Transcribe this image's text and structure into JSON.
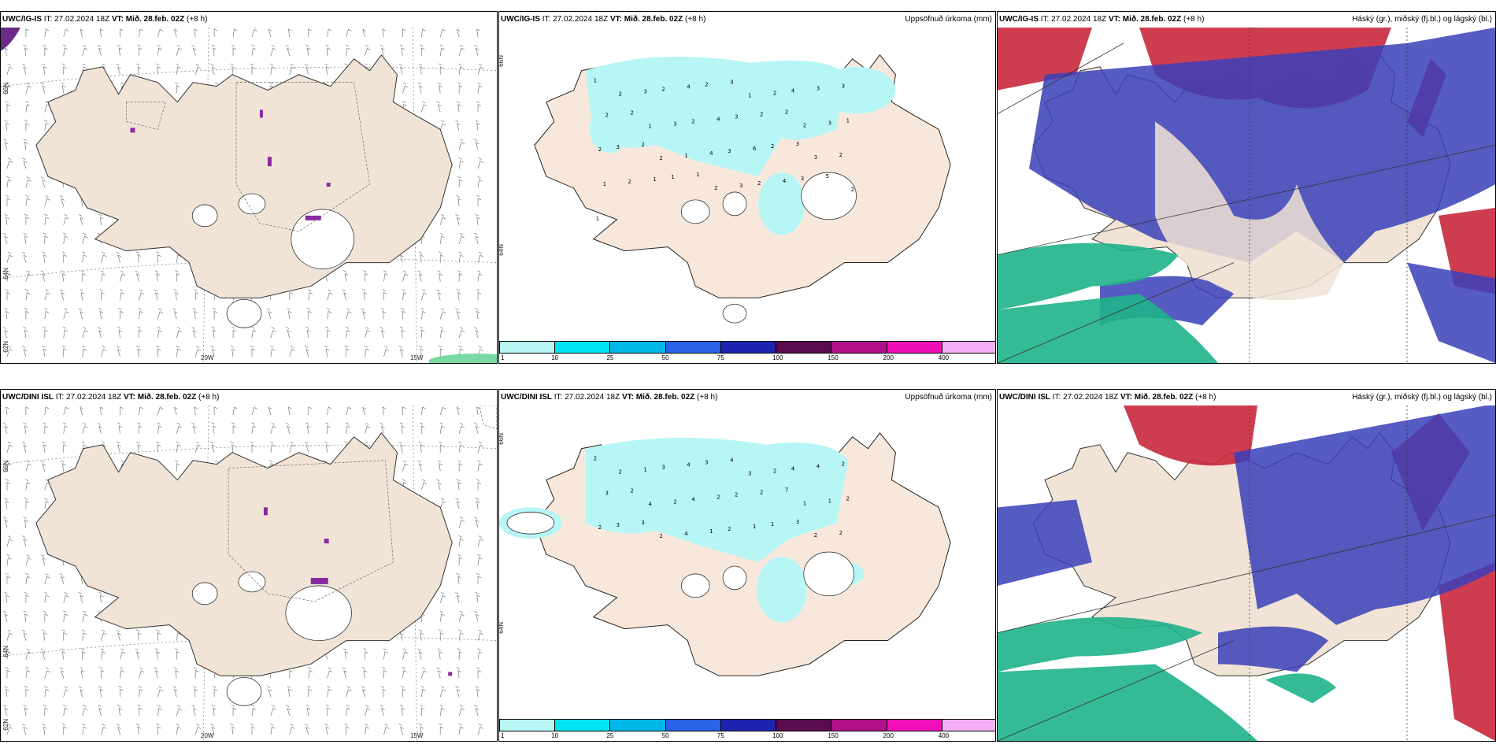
{
  "rows": [
    {
      "model": "UWC/IG-IS",
      "it_text": "IT: 27.02.2024 18Z",
      "vt_label": "VT:",
      "vt_value": "Mið. 28.feb. 02Z",
      "lead": "(+8 h)"
    },
    {
      "model": "UWC/DINI ISL",
      "it_text": "IT: 27.02.2024 18Z",
      "vt_label": "VT:",
      "vt_value": "Mið. 28.feb. 02Z",
      "lead": "(+8 h)"
    }
  ],
  "precip_title": "Uppsöfnuð úrkoma (mm)",
  "cloud_title": "Háský (gr.), miðský (fj.bl.) og lágský (bl.)",
  "grid_labels": {
    "lat_66": "66N",
    "lat_64": "64N",
    "lat_62": "62N",
    "lon_20": "20W",
    "lon_15": "15W"
  },
  "colorbar": {
    "ticks": [
      "1",
      "10",
      "25",
      "50",
      "75",
      "100",
      "150",
      "200",
      "400"
    ],
    "colors": [
      "#b8f6f6",
      "#00e5f0",
      "#00b8e8",
      "#2a62e8",
      "#1d24b0",
      "#5a0a4e",
      "#b0108a",
      "#f010b8",
      "#f4b0f4"
    ]
  },
  "precip_numbers_top": [
    "1",
    "2",
    "3",
    "2",
    "4",
    "2",
    "3",
    "1",
    "2",
    "4",
    "3",
    "3",
    "2",
    "2",
    "1",
    "3",
    "2",
    "4",
    "3",
    "2",
    "2",
    "2",
    "3",
    "1",
    "2",
    "3",
    "2",
    "2",
    "1",
    "4",
    "3",
    "6",
    "2",
    "3",
    "3",
    "2",
    "1",
    "2",
    "1",
    "1",
    "1",
    "2",
    "3",
    "2",
    "4",
    "3",
    "5",
    "2",
    "1"
  ],
  "precip_numbers_bottom": [
    "2",
    "2",
    "1",
    "3",
    "4",
    "3",
    "4",
    "3",
    "2",
    "4",
    "4",
    "2",
    "3",
    "2",
    "4",
    "2",
    "4",
    "2",
    "2",
    "2",
    "7",
    "1",
    "1",
    "2",
    "2",
    "3",
    "3",
    "2",
    "4",
    "1",
    "2",
    "1",
    "1",
    "3",
    "2",
    "2"
  ],
  "colors": {
    "land": "#f8e8dc",
    "land_left": "#f1e3d6",
    "precip_light": "#b8f6f6",
    "cloud_high_red": "#c8283c",
    "cloud_mid_blue": "#3a40b8",
    "cloud_low_green": "#1fb389"
  }
}
